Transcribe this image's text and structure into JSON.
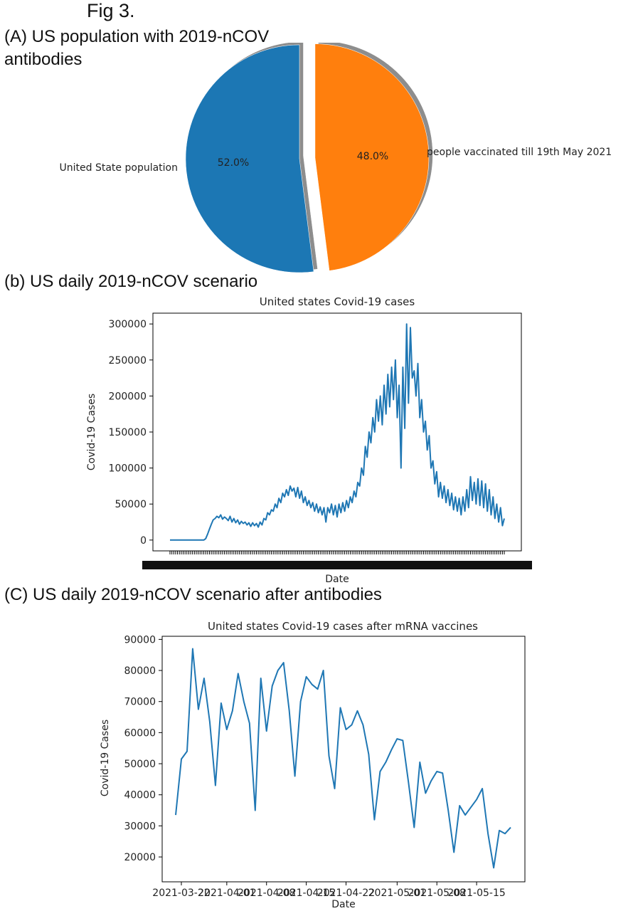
{
  "figure_label": "Fig 3.",
  "panels": {
    "a": {
      "title_line1": "(A) US population with 2019-nCOV",
      "title_line2": "antibodies"
    },
    "b": {
      "title": "(b) US daily 2019-nCOV scenario"
    },
    "c": {
      "title": "(C) US daily 2019-nCOV scenario after antibodies"
    }
  },
  "chart_data": [
    {
      "type": "pie",
      "labels": [
        "United State population",
        "people vaccinated till 19th May 2021"
      ],
      "values": [
        52.0,
        48.0
      ],
      "value_labels": [
        "52.0%",
        "48.0%"
      ],
      "colors": [
        "#1f77b4",
        "#ff7f0e"
      ],
      "exploded": [
        false,
        true
      ],
      "shadow": true
    },
    {
      "type": "line",
      "title": "United states Covid-19 cases",
      "xlabel": "Date",
      "ylabel": "Covid-19 Cases",
      "ylim": [
        -15000,
        315000
      ],
      "yticks": [
        0,
        50000,
        100000,
        150000,
        200000,
        250000,
        300000
      ],
      "x_tick_labels_note": "dense overlapping date tick labels (illegible)",
      "color": "#1f77b4",
      "y": [
        0,
        0,
        0,
        0,
        0,
        0,
        0,
        0,
        0,
        0,
        0,
        0,
        0,
        0,
        0,
        0,
        0,
        0,
        0,
        2000,
        8000,
        15000,
        22000,
        28000,
        30000,
        33000,
        31000,
        35000,
        29000,
        32000,
        30000,
        27000,
        33000,
        25000,
        30000,
        24000,
        28000,
        22000,
        26000,
        23000,
        25000,
        21000,
        24000,
        19000,
        24000,
        20000,
        23000,
        18000,
        25000,
        21000,
        30000,
        28000,
        38000,
        35000,
        42000,
        40000,
        50000,
        45000,
        58000,
        52000,
        65000,
        60000,
        70000,
        62000,
        75000,
        68000,
        72000,
        60000,
        73000,
        58000,
        68000,
        52000,
        60000,
        48000,
        55000,
        45000,
        52000,
        40000,
        50000,
        38000,
        46000,
        35000,
        45000,
        25000,
        45000,
        38000,
        50000,
        35000,
        48000,
        32000,
        50000,
        38000,
        52000,
        40000,
        55000,
        45000,
        60000,
        52000,
        68000,
        60000,
        80000,
        75000,
        100000,
        90000,
        130000,
        115000,
        150000,
        135000,
        170000,
        150000,
        195000,
        165000,
        200000,
        160000,
        215000,
        175000,
        230000,
        185000,
        240000,
        195000,
        250000,
        170000,
        215000,
        100000,
        240000,
        155000,
        300000,
        190000,
        295000,
        225000,
        235000,
        200000,
        245000,
        170000,
        195000,
        150000,
        165000,
        125000,
        145000,
        100000,
        110000,
        78000,
        95000,
        60000,
        80000,
        58000,
        75000,
        52000,
        70000,
        48000,
        65000,
        42000,
        60000,
        40000,
        58000,
        35000,
        60000,
        40000,
        70000,
        45000,
        88000,
        55000,
        80000,
        50000,
        85000,
        48000,
        82000,
        45000,
        78000,
        40000,
        70000,
        35000,
        60000,
        30000,
        50000,
        25000,
        45000,
        20000,
        30000
      ]
    },
    {
      "type": "line",
      "title": "United states Covid-19 cases after mRNA vaccines",
      "xlabel": "Date",
      "ylabel": "Covid-19 Cases",
      "ylim": [
        12000,
        91000
      ],
      "yticks": [
        20000,
        30000,
        40000,
        50000,
        60000,
        70000,
        80000,
        90000
      ],
      "x_tick_labels": [
        "2021-03-22",
        "2021-04-01",
        "2021-04-08",
        "2021-04-15",
        "2021-04-22",
        "2021-05-01",
        "2021-05-08",
        "2021-05-15"
      ],
      "color": "#1f77b4",
      "y": [
        33500,
        51500,
        54000,
        87000,
        67500,
        77500,
        63500,
        43000,
        69500,
        61000,
        67000,
        79000,
        70000,
        63000,
        35000,
        77500,
        60500,
        75000,
        80000,
        82500,
        67000,
        46000,
        70000,
        78000,
        75500,
        74000,
        80000,
        52500,
        42000,
        68000,
        61000,
        62500,
        67000,
        62500,
        53000,
        32000,
        47500,
        50500,
        54500,
        58000,
        57500,
        44000,
        29500,
        50500,
        40500,
        44500,
        47500,
        47000,
        35000,
        21500,
        36500,
        33500,
        36000,
        38500,
        42000,
        27500,
        16500,
        28500,
        27500,
        29500
      ]
    }
  ]
}
